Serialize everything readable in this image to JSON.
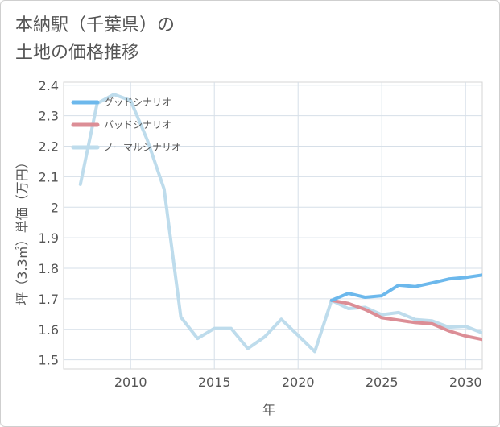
{
  "chart_data": {
    "type": "line",
    "title_lines": [
      "本納駅（千葉県）の",
      "土地の価格推移"
    ],
    "xlabel": "年",
    "ylabel": "坪（3.3㎡）単価（万円）",
    "xlim": [
      2006,
      2031
    ],
    "ylim": [
      1.47,
      2.41
    ],
    "xticks": [
      2010,
      2015,
      2020,
      2025,
      2030
    ],
    "yticks": [
      1.5,
      1.6,
      1.7,
      1.8,
      1.9,
      2.0,
      2.1,
      2.2,
      2.3,
      2.4
    ],
    "ytick_labels": [
      "1.5",
      "1.6",
      "1.7",
      "1.8",
      "1.9",
      "2",
      "2.1",
      "2.2",
      "2.3",
      "2.4"
    ],
    "grid": true,
    "legend_position": "top-left",
    "series": [
      {
        "name": "グッドシナリオ",
        "color": "#6cb8ec",
        "x": [
          2022,
          2023,
          2024,
          2025,
          2026,
          2027,
          2028,
          2029,
          2030,
          2031
        ],
        "values": [
          1.695,
          1.718,
          1.705,
          1.71,
          1.745,
          1.74,
          1.752,
          1.765,
          1.77,
          1.778
        ]
      },
      {
        "name": "バッドシナリオ",
        "color": "#dc8e96",
        "x": [
          2022,
          2023,
          2024,
          2025,
          2026,
          2027,
          2028,
          2029,
          2030,
          2031
        ],
        "values": [
          1.695,
          1.685,
          1.665,
          1.638,
          1.63,
          1.622,
          1.618,
          1.595,
          1.578,
          1.567
        ]
      },
      {
        "name": "ノーマルシナリオ",
        "color": "#bedcec",
        "x": [
          2007,
          2008,
          2009,
          2010,
          2011,
          2012,
          2013,
          2014,
          2015,
          2016,
          2017,
          2018,
          2019,
          2020,
          2021,
          2022,
          2023,
          2024,
          2025,
          2026,
          2027,
          2028,
          2029,
          2030,
          2031
        ],
        "values": [
          2.075,
          2.34,
          2.37,
          2.35,
          2.22,
          2.06,
          1.64,
          1.57,
          1.603,
          1.603,
          1.537,
          1.575,
          1.633,
          1.58,
          1.527,
          1.695,
          1.668,
          1.672,
          1.648,
          1.655,
          1.632,
          1.628,
          1.607,
          1.61,
          1.588
        ]
      }
    ]
  }
}
